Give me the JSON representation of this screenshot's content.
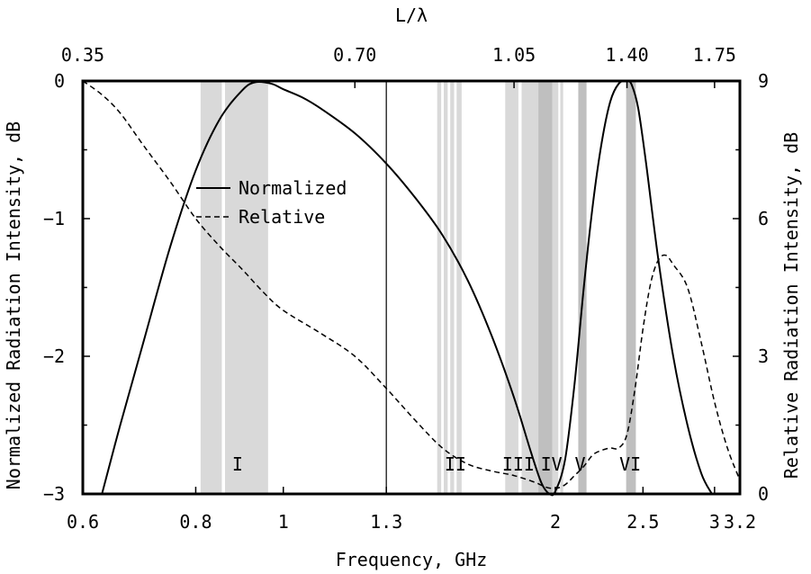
{
  "chart_data": {
    "type": "line",
    "xlabel": "Frequency, GHz",
    "x2label": "L/λ",
    "ylabel": "Normalized Radiation Intensity, dB",
    "y2label": "Relative Radiation Intensity, dB",
    "x_scale": "log",
    "xlim": [
      0.6,
      3.2
    ],
    "ylim": [
      -3,
      0
    ],
    "y2lim": [
      0,
      9
    ],
    "x_ticks": [
      {
        "value": 0.6,
        "label": "0.6"
      },
      {
        "value": 0.8,
        "label": "0.8"
      },
      {
        "value": 1.0,
        "label": "1"
      },
      {
        "value": 1.3,
        "label": "1.3"
      },
      {
        "value": 2.0,
        "label": "2"
      },
      {
        "value": 2.5,
        "label": "2.5"
      },
      {
        "value": 3.0,
        "label": "3"
      },
      {
        "value": 3.2,
        "label": "3.2"
      }
    ],
    "x2_ticks": [
      {
        "value": 0.6,
        "label": "0.35"
      },
      {
        "value": 1.2,
        "label": "0.70"
      },
      {
        "value": 1.8,
        "label": "1.05"
      },
      {
        "value": 2.4,
        "label": "1.40"
      },
      {
        "value": 3.0,
        "label": "1.75"
      }
    ],
    "y_ticks": [
      {
        "value": 0,
        "label": "0"
      },
      {
        "value": -1,
        "label": "−1"
      },
      {
        "value": -2,
        "label": "−2"
      },
      {
        "value": -3,
        "label": "−3"
      }
    ],
    "y2_ticks": [
      {
        "value": 9,
        "label": "9"
      },
      {
        "value": 6,
        "label": "6"
      },
      {
        "value": 3,
        "label": "3"
      },
      {
        "value": 0,
        "label": "0"
      }
    ],
    "vertical_line_x": 1.3,
    "bands": [
      {
        "x0": 0.81,
        "x1": 0.855,
        "shade": "#d9d9d9"
      },
      {
        "x0": 0.862,
        "x1": 0.962,
        "shade": "#d9d9d9"
      },
      {
        "x0": 1.48,
        "x1": 1.495,
        "shade": "#d9d9d9"
      },
      {
        "x0": 1.505,
        "x1": 1.52,
        "shade": "#d9d9d9"
      },
      {
        "x0": 1.53,
        "x1": 1.545,
        "shade": "#d9d9d9"
      },
      {
        "x0": 1.555,
        "x1": 1.575,
        "shade": "#d9d9d9"
      },
      {
        "x0": 1.76,
        "x1": 1.82,
        "shade": "#d9d9d9"
      },
      {
        "x0": 1.835,
        "x1": 1.915,
        "shade": "#d9d9d9"
      },
      {
        "x0": 1.915,
        "x1": 1.985,
        "shade": "#bfbfbf"
      },
      {
        "x0": 1.985,
        "x1": 2.015,
        "shade": "#d9d9d9"
      },
      {
        "x0": 2.025,
        "x1": 2.04,
        "shade": "#d9d9d9"
      },
      {
        "x0": 2.12,
        "x1": 2.165,
        "shade": "#bfbfbf"
      },
      {
        "x0": 2.395,
        "x1": 2.455,
        "shade": "#bfbfbf"
      }
    ],
    "band_labels": [
      {
        "text": "I",
        "x": 0.89
      },
      {
        "text": "II",
        "x": 1.55
      },
      {
        "text": "III",
        "x": 1.82
      },
      {
        "text": "IV",
        "x": 1.98
      },
      {
        "text": "V",
        "x": 2.13
      },
      {
        "text": "VI",
        "x": 2.42
      }
    ],
    "legend_placement": "upper-left",
    "series": [
      {
        "name": "Normalized",
        "style": "solid",
        "axis": "left",
        "x": [
          0.63,
          0.66,
          0.7,
          0.75,
          0.8,
          0.85,
          0.9,
          0.93,
          0.97,
          1.0,
          1.05,
          1.1,
          1.2,
          1.3,
          1.4,
          1.5,
          1.6,
          1.7,
          1.8,
          1.88,
          1.93,
          1.97,
          2.0,
          2.05,
          2.1,
          2.15,
          2.2,
          2.25,
          2.3,
          2.35,
          2.4,
          2.43,
          2.47,
          2.52,
          2.6,
          2.7,
          2.8,
          2.9,
          2.98
        ],
        "y": [
          -3.0,
          -2.5,
          -1.9,
          -1.2,
          -0.65,
          -0.28,
          -0.07,
          -0.01,
          -0.02,
          -0.06,
          -0.12,
          -0.2,
          -0.38,
          -0.6,
          -0.85,
          -1.12,
          -1.45,
          -1.85,
          -2.3,
          -2.7,
          -2.92,
          -3.0,
          -2.98,
          -2.75,
          -2.2,
          -1.5,
          -0.9,
          -0.45,
          -0.15,
          -0.02,
          0.0,
          -0.03,
          -0.2,
          -0.6,
          -1.3,
          -2.0,
          -2.5,
          -2.85,
          -3.0
        ]
      },
      {
        "name": "Relative",
        "style": "dashed",
        "axis": "right",
        "x": [
          0.6,
          0.63,
          0.66,
          0.7,
          0.75,
          0.8,
          0.85,
          0.9,
          0.95,
          1.0,
          1.1,
          1.2,
          1.3,
          1.4,
          1.5,
          1.6,
          1.7,
          1.8,
          1.9,
          1.95,
          2.0,
          2.05,
          2.1,
          2.15,
          2.2,
          2.25,
          2.3,
          2.35,
          2.4,
          2.45,
          2.5,
          2.55,
          2.6,
          2.65,
          2.7,
          2.8,
          2.9,
          3.0,
          3.1,
          3.2
        ],
        "y": [
          9.0,
          8.7,
          8.3,
          7.6,
          6.8,
          6.0,
          5.4,
          4.9,
          4.4,
          4.0,
          3.5,
          3.0,
          2.3,
          1.6,
          1.0,
          0.65,
          0.5,
          0.4,
          0.25,
          0.15,
          0.12,
          0.2,
          0.4,
          0.6,
          0.85,
          0.95,
          1.0,
          1.0,
          1.3,
          2.3,
          3.6,
          4.6,
          5.1,
          5.2,
          5.0,
          4.5,
          3.3,
          2.0,
          1.0,
          0.3
        ]
      }
    ]
  }
}
